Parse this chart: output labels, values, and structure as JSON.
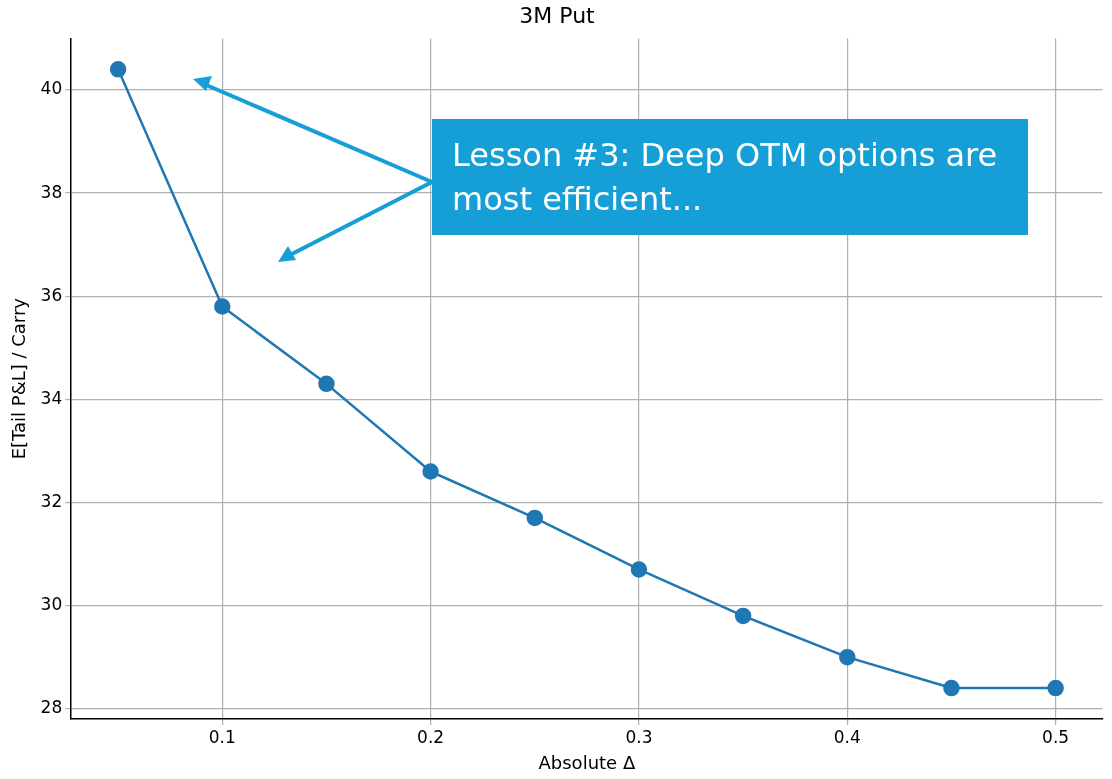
{
  "chart_data": {
    "type": "line",
    "title": "3M Put",
    "xlabel": "Absolute Δ",
    "ylabel": "E[Tail P&L] / Carry",
    "x": [
      0.05,
      0.1,
      0.15,
      0.2,
      0.25,
      0.3,
      0.35,
      0.4,
      0.45,
      0.5
    ],
    "series": [
      {
        "color": "#1f77b4",
        "values": [
          40.4,
          35.8,
          34.3,
          32.6,
          31.7,
          30.7,
          29.8,
          29.0,
          28.4,
          28.4
        ]
      }
    ],
    "xlim": [
      0.0275,
      0.5225
    ],
    "ylim": [
      27.8,
      41
    ],
    "xticks": [
      0.1,
      0.2,
      0.3,
      0.4,
      0.5
    ],
    "yticks": [
      28,
      30,
      32,
      34,
      36,
      38,
      40
    ],
    "grid": true,
    "marker": "circle",
    "line_style": "solid",
    "annotations": [
      "Lesson #3: Deep OTM options are most efficient..."
    ]
  }
}
